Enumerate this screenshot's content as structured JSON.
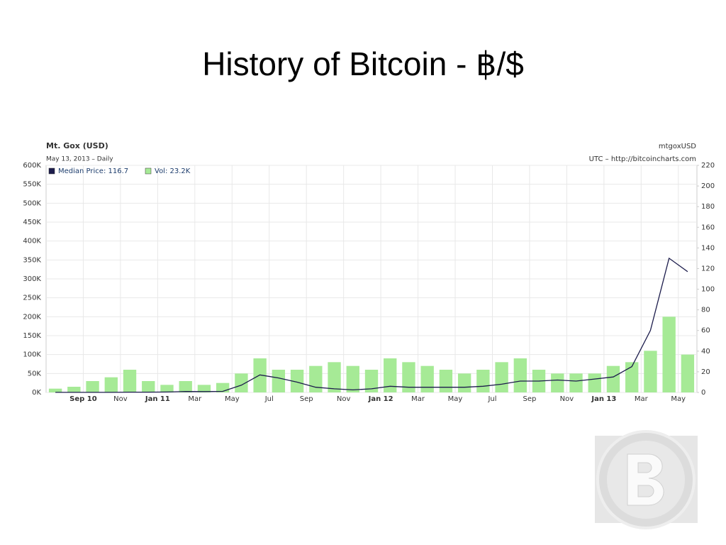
{
  "slide": {
    "title": "History of Bitcoin - ฿/$"
  },
  "chart_data": {
    "type": "combo",
    "title": "Mt. Gox (USD)",
    "subtitle": "May 13, 2013 – Daily",
    "annotations": [
      "mtgoxUSD",
      "UTC – http://bitcoincharts.com"
    ],
    "x": [
      "2010-07",
      "2010-08",
      "2010-09",
      "2010-10",
      "2010-11",
      "2010-12",
      "2011-01",
      "2011-02",
      "2011-03",
      "2011-04",
      "2011-05",
      "2011-06",
      "2011-07",
      "2011-08",
      "2011-09",
      "2011-10",
      "2011-11",
      "2011-12",
      "2012-01",
      "2012-02",
      "2012-03",
      "2012-04",
      "2012-05",
      "2012-06",
      "2012-07",
      "2012-08",
      "2012-09",
      "2012-10",
      "2012-11",
      "2012-12",
      "2013-01",
      "2013-02",
      "2013-03",
      "2013-04",
      "2013-05"
    ],
    "xlim": [
      "2010-07",
      "2013-05"
    ],
    "xticks": [
      {
        "value": "2010-09",
        "label": "Sep 10"
      },
      {
        "value": "2010-11",
        "label": "Nov"
      },
      {
        "value": "2011-01",
        "label": "Jan 11"
      },
      {
        "value": "2011-03",
        "label": "Mar"
      },
      {
        "value": "2011-05",
        "label": "May"
      },
      {
        "value": "2011-07",
        "label": "Jul"
      },
      {
        "value": "2011-09",
        "label": "Sep"
      },
      {
        "value": "2011-11",
        "label": "Nov"
      },
      {
        "value": "2012-01",
        "label": "Jan 12"
      },
      {
        "value": "2012-03",
        "label": "Mar"
      },
      {
        "value": "2012-05",
        "label": "May"
      },
      {
        "value": "2012-07",
        "label": "Jul"
      },
      {
        "value": "2012-09",
        "label": "Sep"
      },
      {
        "value": "2012-11",
        "label": "Nov"
      },
      {
        "value": "2013-01",
        "label": "Jan 13"
      },
      {
        "value": "2013-03",
        "label": "Mar"
      },
      {
        "value": "2013-05",
        "label": "May"
      }
    ],
    "ylim": [
      0,
      600000
    ],
    "yticks": [
      {
        "value": 0,
        "label": "0K"
      },
      {
        "value": 50000,
        "label": "50K"
      },
      {
        "value": 100000,
        "label": "100K"
      },
      {
        "value": 150000,
        "label": "150K"
      },
      {
        "value": 200000,
        "label": "200K"
      },
      {
        "value": 250000,
        "label": "250K"
      },
      {
        "value": 300000,
        "label": "300K"
      },
      {
        "value": 350000,
        "label": "350K"
      },
      {
        "value": 400000,
        "label": "400K"
      },
      {
        "value": 450000,
        "label": "450K"
      },
      {
        "value": 500000,
        "label": "500K"
      },
      {
        "value": 550000,
        "label": "550K"
      },
      {
        "value": 600000,
        "label": "600K"
      }
    ],
    "y2lim": [
      0,
      220
    ],
    "y2ticks": [
      0,
      20,
      40,
      60,
      80,
      100,
      120,
      140,
      160,
      180,
      200,
      220
    ],
    "grid": true,
    "series": [
      {
        "name": "Median Price: 116.7",
        "color": "#1c1c4c",
        "type": "line",
        "axis": "y2",
        "values": [
          0.07,
          0.07,
          0.06,
          0.1,
          0.25,
          0.25,
          0.4,
          0.9,
          0.85,
          1,
          7,
          17,
          14,
          10,
          5,
          3.5,
          2.5,
          3.5,
          6,
          5,
          5,
          5,
          5,
          6,
          8,
          11,
          11,
          12,
          11,
          13,
          15,
          25,
          60,
          130,
          117
        ]
      },
      {
        "name": "Vol: 23.2K",
        "color": "#a6ea96",
        "type": "bar",
        "values": [
          10000,
          15000,
          30000,
          40000,
          60000,
          30000,
          20000,
          30000,
          20000,
          25000,
          50000,
          90000,
          60000,
          60000,
          70000,
          80000,
          70000,
          60000,
          90000,
          80000,
          70000,
          60000,
          50000,
          60000,
          80000,
          90000,
          60000,
          50000,
          50000,
          50000,
          70000,
          80000,
          110000,
          200000,
          100000
        ]
      }
    ]
  }
}
